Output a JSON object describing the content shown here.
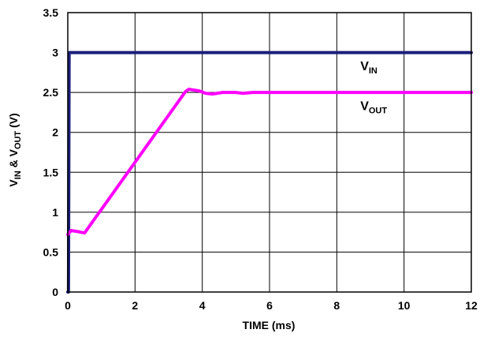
{
  "chart_data": {
    "type": "line",
    "title": "",
    "xlabel": "TIME (ms)",
    "ylabel": {
      "parts": [
        {
          "text": "V",
          "sub": false
        },
        {
          "text": "IN",
          "sub": true
        },
        {
          "text": " & V",
          "sub": false
        },
        {
          "text": "OUT",
          "sub": true
        },
        {
          "text": " (V)",
          "sub": false
        }
      ]
    },
    "xlim": [
      0,
      12
    ],
    "ylim": [
      0,
      3.5
    ],
    "x_ticks": [
      0,
      2,
      4,
      6,
      8,
      10,
      12
    ],
    "y_ticks": [
      0,
      0.5,
      1,
      1.5,
      2,
      2.5,
      3,
      3.5
    ],
    "x_tick_labels": [
      "0",
      "2",
      "4",
      "6",
      "8",
      "10",
      "12"
    ],
    "y_tick_labels": [
      "0",
      "0.5",
      "1",
      "1.5",
      "2",
      "2.5",
      "3",
      "3.5"
    ],
    "grid": true,
    "series": [
      {
        "name": {
          "main": "V",
          "sub": "IN"
        },
        "color": "#1b1f7a",
        "x": [
          0,
          0.02,
          0.04,
          0.06,
          12
        ],
        "y": [
          0,
          0,
          3.0,
          3.0,
          3.0
        ]
      },
      {
        "name": {
          "main": "V",
          "sub": "OUT"
        },
        "color": "#ff00ff",
        "x": [
          0,
          0.1,
          0.25,
          0.5,
          3.5,
          3.6,
          3.75,
          3.9,
          4.1,
          4.3,
          4.6,
          5.0,
          5.2,
          5.5,
          12
        ],
        "y": [
          0.72,
          0.77,
          0.76,
          0.74,
          2.51,
          2.54,
          2.53,
          2.52,
          2.49,
          2.48,
          2.5,
          2.5,
          2.49,
          2.5,
          2.5
        ]
      }
    ],
    "annotations": [
      {
        "series": 0,
        "main": "V",
        "sub": "IN",
        "x": 8.7,
        "y": 2.78
      },
      {
        "series": 1,
        "main": "V",
        "sub": "OUT",
        "x": 8.7,
        "y": 2.28
      }
    ]
  }
}
